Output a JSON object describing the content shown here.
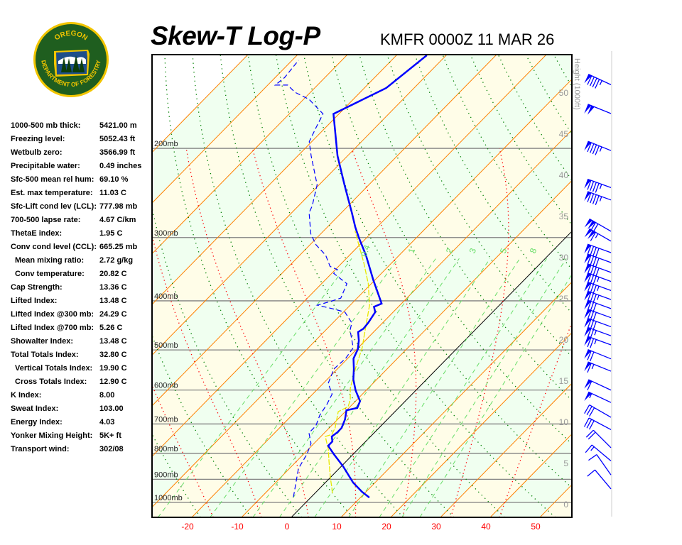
{
  "header": {
    "title": "Skew-T Log-P",
    "subtitle": "KMFR 0000Z 11 MAR 26"
  },
  "logo": {
    "top_text": "OREGON",
    "bottom_text": "DEPARTMENT OF FORESTRY"
  },
  "stats": [
    {
      "label": "1000-500 mb thick:",
      "value": "5421.00 m"
    },
    {
      "label": "Freezing level:",
      "value": "5052.43 ft"
    },
    {
      "label": "Wetbulb zero:",
      "value": "3566.99 ft"
    },
    {
      "label": "Precipitable water:",
      "value": "0.49 inches"
    },
    {
      "label": "Sfc-500 mean rel hum:",
      "value": "69.10 %"
    },
    {
      "label": "Est. max temperature:",
      "value": "11.03 C"
    },
    {
      "label": "Sfc-Lift cond lev (LCL):",
      "value": "777.98 mb"
    },
    {
      "label": "700-500 lapse rate:",
      "value": "4.67 C/km"
    },
    {
      "label": "ThetaE index:",
      "value": "1.95 C"
    },
    {
      "label": "Conv cond level (CCL):",
      "value": "665.25 mb"
    },
    {
      "label": "Mean mixing ratio:",
      "value": "2.72 g/kg",
      "indent": true
    },
    {
      "label": "Conv temperature:",
      "value": "20.82 C",
      "indent": true
    },
    {
      "label": "Cap Strength:",
      "value": "13.36 C"
    },
    {
      "label": "Lifted Index:",
      "value": "13.48 C"
    },
    {
      "label": "Lifted Index @300 mb:",
      "value": "24.29 C"
    },
    {
      "label": "Lifted Index @700 mb:",
      "value": "5.26 C"
    },
    {
      "label": "Showalter Index:",
      "value": "13.48 C"
    },
    {
      "label": "Total Totals Index:",
      "value": "32.80 C"
    },
    {
      "label": "Vertical Totals Index:",
      "value": "19.90 C",
      "indent": true
    },
    {
      "label": "Cross Totals Index:",
      "value": "12.90 C",
      "indent": true
    },
    {
      "label": "K Index:",
      "value": "8.00"
    },
    {
      "label": "Sweat Index:",
      "value": "103.00"
    },
    {
      "label": "Energy Index:",
      "value": "4.03"
    },
    {
      "label": "Yonker Mixing Height:",
      "value": "5K+ ft"
    },
    {
      "label": "Transport wind:",
      "value": "302/08"
    }
  ],
  "chart_data": {
    "type": "skew-t",
    "x_ticks": [
      "-20",
      "-10",
      "0",
      "10",
      "20",
      "30",
      "40",
      "50"
    ],
    "x_tick_values": [
      -20,
      -10,
      0,
      10,
      20,
      30,
      40,
      50
    ],
    "xlim_surface": [
      -28,
      56
    ],
    "pressure_range_mb": [
      1070,
      130
    ],
    "y_scale": "log",
    "pressure_labels": [
      "1000mb",
      "900mb",
      "800mb",
      "700mb",
      "600mb",
      "500mb",
      "400mb",
      "300mb",
      "200mb"
    ],
    "pressure_values": [
      1000,
      900,
      800,
      700,
      600,
      500,
      400,
      300,
      200
    ],
    "height_axis_label": "Height (1000ft)",
    "height_ticks": [
      "0",
      "5",
      "10",
      "15",
      "20",
      "25",
      "30",
      "35",
      "40",
      "45",
      "50"
    ],
    "height_tick_values": [
      0,
      5,
      10,
      15,
      20,
      25,
      30,
      35,
      40,
      45,
      50
    ],
    "mixing_ratio_labels": [
      "0.4",
      "1",
      "2",
      "3",
      "5",
      "8"
    ],
    "mixing_ratio_values": [
      0.4,
      1,
      2,
      3,
      5,
      8
    ],
    "colors": {
      "temperature": "#0000ff",
      "dewpoint": "#0000ff",
      "yellow_trace": "#e8e800",
      "isotherm": "#ff8000",
      "zero_isotherm": "#000000",
      "dry_adiabat": "#008000",
      "moist_adiabat": "#ff0000",
      "mixing_ratio": "#66dd66",
      "band_a": "#f0fff0",
      "band_b": "#fffde8"
    },
    "temperature_profile": [
      [
        978,
        11.8
      ],
      [
        953,
        9.2
      ],
      [
        914,
        5.6
      ],
      [
        848,
        0.3
      ],
      [
        803,
        -3.9
      ],
      [
        773,
        -6.7
      ],
      [
        758,
        -6.7
      ],
      [
        741,
        -7.8
      ],
      [
        727,
        -7.5
      ],
      [
        713,
        -7.5
      ],
      [
        686,
        -8.5
      ],
      [
        658,
        -10.0
      ],
      [
        651,
        -8.3
      ],
      [
        631,
        -9.1
      ],
      [
        601,
        -12.1
      ],
      [
        572,
        -14.7
      ],
      [
        545,
        -16.7
      ],
      [
        520,
        -18.8
      ],
      [
        498,
        -19.8
      ],
      [
        479,
        -21.3
      ],
      [
        461,
        -23.1
      ],
      [
        454,
        -22.7
      ],
      [
        442,
        -22.9
      ],
      [
        421,
        -23.6
      ],
      [
        411,
        -24.9
      ],
      [
        405,
        -24.0
      ],
      [
        364,
        -30.3
      ],
      [
        325,
        -36.7
      ],
      [
        300,
        -41.6
      ],
      [
        286,
        -44.4
      ],
      [
        268,
        -47.9
      ],
      [
        236,
        -54.9
      ],
      [
        207,
        -62.0
      ],
      [
        171,
        -71.1
      ],
      [
        152,
        -65.6
      ],
      [
        131,
        -63.9
      ]
    ],
    "dewpoint_profile": [
      [
        975,
        -3.6
      ],
      [
        914,
        -5.9
      ],
      [
        857,
        -8.2
      ],
      [
        803,
        -9.3
      ],
      [
        765,
        -10.6
      ],
      [
        729,
        -13.1
      ],
      [
        706,
        -13.1
      ],
      [
        673,
        -14.4
      ],
      [
        641,
        -15.1
      ],
      [
        611,
        -16.1
      ],
      [
        582,
        -19.0
      ],
      [
        545,
        -20.7
      ],
      [
        520,
        -20.4
      ],
      [
        495,
        -21.0
      ],
      [
        457,
        -25.1
      ],
      [
        442,
        -26.2
      ],
      [
        421,
        -29.7
      ],
      [
        415,
        -32.6
      ],
      [
        408,
        -36.6
      ],
      [
        401,
        -34.7
      ],
      [
        395,
        -33.3
      ],
      [
        370,
        -34.9
      ],
      [
        353,
        -39.6
      ],
      [
        347,
        -39.6
      ],
      [
        342,
        -41.7
      ],
      [
        325,
        -44.8
      ],
      [
        310,
        -48.8
      ],
      [
        295,
        -52.0
      ],
      [
        268,
        -56.5
      ],
      [
        260,
        -57.2
      ],
      [
        236,
        -60.4
      ],
      [
        207,
        -67.3
      ],
      [
        194,
        -70.5
      ],
      [
        182,
        -71.9
      ],
      [
        171,
        -73.2
      ],
      [
        160,
        -78.9
      ],
      [
        155,
        -83.1
      ],
      [
        150,
        -86.0
      ],
      [
        150,
        -88.5
      ],
      [
        145,
        -88.1
      ],
      [
        134,
        -88.7
      ]
    ],
    "yellow_profile": [
      [
        959,
        3.5
      ],
      [
        935,
        2.3
      ],
      [
        893,
        0.0
      ],
      [
        829,
        -3.5
      ],
      [
        785,
        -6.0
      ],
      [
        741,
        -9.1
      ],
      [
        734,
        -8.2
      ],
      [
        713,
        -8.8
      ],
      [
        662,
        -11.4
      ],
      [
        647,
        -10.4
      ],
      [
        626,
        -11.4
      ],
      [
        595,
        -13.6
      ],
      [
        545,
        -16.4
      ],
      [
        495,
        -19.2
      ],
      [
        449,
        -22.7
      ],
      [
        408,
        -26.1
      ],
      [
        370,
        -30.6
      ],
      [
        336,
        -35.7
      ],
      [
        310,
        -40.2
      ],
      [
        291,
        -43.7
      ]
    ],
    "winds": [
      {
        "height_kft": 51.0,
        "dir": 295,
        "speed_kt": 95
      },
      {
        "height_kft": 47.5,
        "dir": 292,
        "speed_kt": 100
      },
      {
        "height_kft": 43.0,
        "dir": 292,
        "speed_kt": 95
      },
      {
        "height_kft": 38.5,
        "dir": 290,
        "speed_kt": 95
      },
      {
        "height_kft": 37.0,
        "dir": 290,
        "speed_kt": 95
      },
      {
        "height_kft": 33.2,
        "dir": 300,
        "speed_kt": 120
      },
      {
        "height_kft": 32.0,
        "dir": 300,
        "speed_kt": 115
      },
      {
        "height_kft": 30.6,
        "dir": 290,
        "speed_kt": 90
      },
      {
        "height_kft": 29.4,
        "dir": 290,
        "speed_kt": 90
      },
      {
        "height_kft": 28.2,
        "dir": 290,
        "speed_kt": 90
      },
      {
        "height_kft": 27.1,
        "dir": 290,
        "speed_kt": 85
      },
      {
        "height_kft": 26.0,
        "dir": 290,
        "speed_kt": 85
      },
      {
        "height_kft": 24.9,
        "dir": 290,
        "speed_kt": 85
      },
      {
        "height_kft": 23.8,
        "dir": 290,
        "speed_kt": 80
      },
      {
        "height_kft": 22.7,
        "dir": 290,
        "speed_kt": 80
      },
      {
        "height_kft": 21.6,
        "dir": 290,
        "speed_kt": 80
      },
      {
        "height_kft": 20.5,
        "dir": 290,
        "speed_kt": 75
      },
      {
        "height_kft": 19.4,
        "dir": 290,
        "speed_kt": 75
      },
      {
        "height_kft": 17.7,
        "dir": 292,
        "speed_kt": 70
      },
      {
        "height_kft": 16.2,
        "dir": 292,
        "speed_kt": 65
      },
      {
        "height_kft": 13.9,
        "dir": 295,
        "speed_kt": 60
      },
      {
        "height_kft": 12.4,
        "dir": 295,
        "speed_kt": 55
      },
      {
        "height_kft": 10.6,
        "dir": 300,
        "speed_kt": 30
      },
      {
        "height_kft": 9.1,
        "dir": 298,
        "speed_kt": 30
      },
      {
        "height_kft": 6.9,
        "dir": 315,
        "speed_kt": 20
      },
      {
        "height_kft": 5.3,
        "dir": 310,
        "speed_kt": 15
      },
      {
        "height_kft": 3.6,
        "dir": 325,
        "speed_kt": 10
      },
      {
        "height_kft": 1.9,
        "dir": 320,
        "speed_kt": 10
      }
    ]
  }
}
